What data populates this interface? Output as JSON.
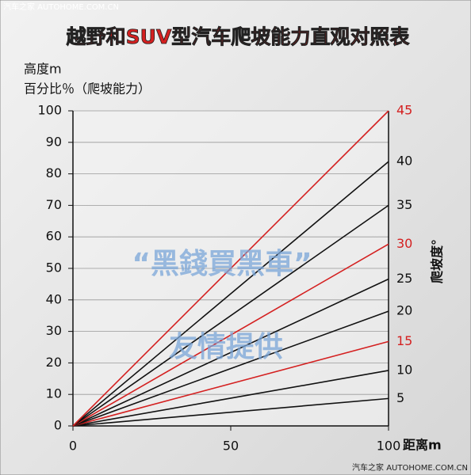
{
  "chart_data": {
    "type": "line",
    "title": "越野和SUV型汽车爬坡能力直观对照表",
    "y_label_1": "高度m",
    "y_label_2": "百分比％（爬坡能力）",
    "x_label": "距离m",
    "y2_label": "爬坡度°",
    "x": [
      0,
      100
    ],
    "xlim": [
      0,
      100
    ],
    "xticks": [
      0,
      50,
      100
    ],
    "ylim": [
      0,
      100
    ],
    "yticks": [
      0,
      10,
      20,
      30,
      40,
      50,
      60,
      70,
      80,
      90,
      100
    ],
    "grid": true,
    "series": [
      {
        "name": "5",
        "color": "#111111",
        "values": [
          0,
          8.7
        ]
      },
      {
        "name": "10",
        "color": "#111111",
        "values": [
          0,
          17.6
        ]
      },
      {
        "name": "15",
        "color": "#d42020",
        "values": [
          0,
          26.8
        ]
      },
      {
        "name": "20",
        "color": "#111111",
        "values": [
          0,
          36.4
        ]
      },
      {
        "name": "25",
        "color": "#111111",
        "values": [
          0,
          46.6
        ]
      },
      {
        "name": "30",
        "color": "#d42020",
        "values": [
          0,
          57.7
        ]
      },
      {
        "name": "35",
        "color": "#111111",
        "values": [
          0,
          70.0
        ]
      },
      {
        "name": "40",
        "color": "#111111",
        "values": [
          0,
          83.9
        ]
      },
      {
        "name": "45",
        "color": "#d42020",
        "values": [
          0,
          100
        ]
      }
    ]
  },
  "watermarks": [
    "汽车之家 AUTOHOME.COM.CN",
    "“黑錢買黑車”",
    "友情提供",
    "汽车之家 AUTOHOME.COM.CN"
  ]
}
